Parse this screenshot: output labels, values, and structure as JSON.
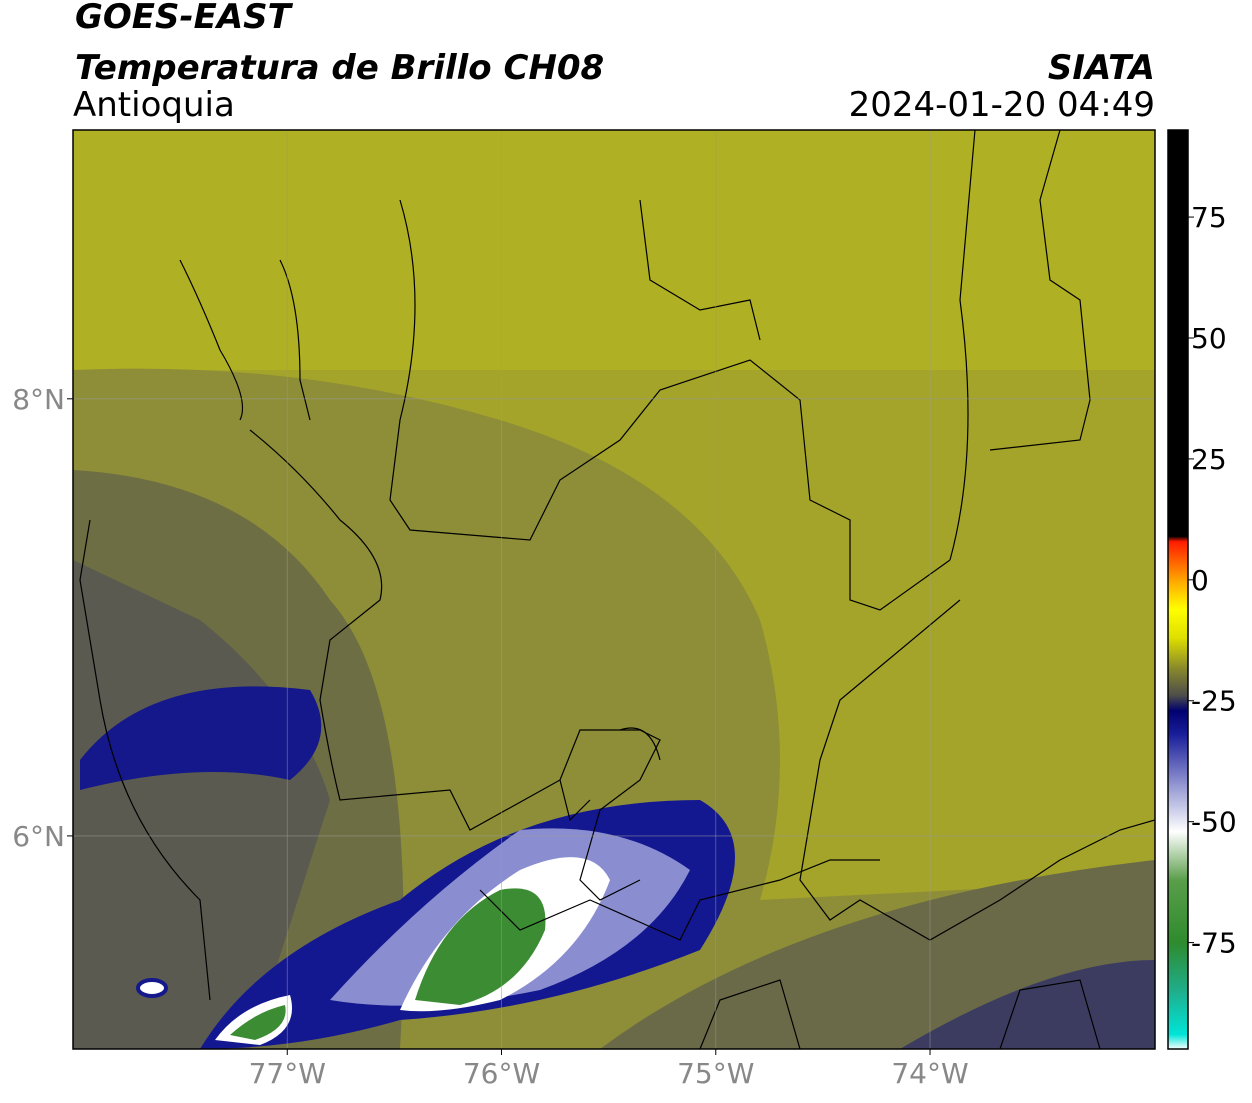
{
  "header": {
    "title": "GOES-EAST",
    "subtitle": "Temperatura de Brillo CH08",
    "region": "Antioquia",
    "source": "SIATA",
    "timestamp": "2024-01-20 04:49"
  },
  "map": {
    "xlim": [
      -78,
      -72.95
    ],
    "ylim": [
      5.025,
      9.23
    ],
    "xticks": [
      {
        "value": -77,
        "label": "77°W"
      },
      {
        "value": -76,
        "label": "76°W"
      },
      {
        "value": -75,
        "label": "75°W"
      },
      {
        "value": -74,
        "label": "74°W"
      }
    ],
    "yticks": [
      {
        "value": 8,
        "label": "8°N"
      },
      {
        "value": 6,
        "label": "6°N"
      }
    ],
    "grid": true
  },
  "colorbar": {
    "lim": [
      -97,
      93
    ],
    "ticks": [
      75,
      50,
      25,
      0,
      -25,
      -50,
      -75
    ],
    "stops": [
      {
        "value": -97,
        "color": "#ffffff"
      },
      {
        "value": -94,
        "color": "#00e5d8"
      },
      {
        "value": -85,
        "color": "#1fae8c"
      },
      {
        "value": -75,
        "color": "#2e8b2e"
      },
      {
        "value": -62,
        "color": "#5a9e4a"
      },
      {
        "value": -52,
        "color": "#ffffff"
      },
      {
        "value": -42,
        "color": "#8f92d0"
      },
      {
        "value": -32,
        "color": "#1a1f9a"
      },
      {
        "value": -27,
        "color": "#000070"
      },
      {
        "value": -24,
        "color": "#4b4b4b"
      },
      {
        "value": -18,
        "color": "#8c8c2a"
      },
      {
        "value": -12,
        "color": "#dede00"
      },
      {
        "value": -6,
        "color": "#ffff00"
      },
      {
        "value": 0,
        "color": "#ffa500"
      },
      {
        "value": 8,
        "color": "#ff1a00"
      },
      {
        "value": 9,
        "color": "#000000"
      },
      {
        "value": 93,
        "color": "#000000"
      }
    ]
  }
}
